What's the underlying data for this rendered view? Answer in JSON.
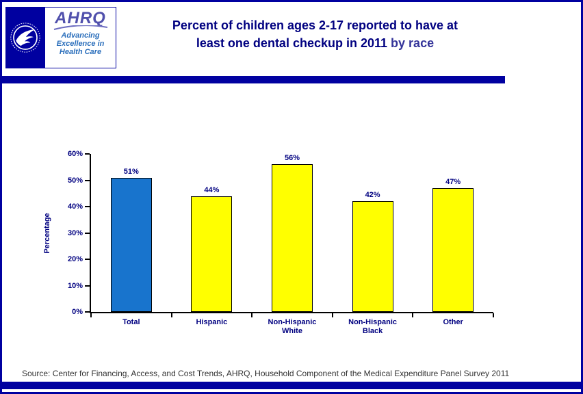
{
  "logo": {
    "org_name": "AHRQ",
    "tagline": "Advancing\nExcellence in\nHealth Care"
  },
  "title": {
    "line1": "Percent of children ages 2-17 reported to have at",
    "line2": "least one dental checkup in 2011",
    "suffix": "by race"
  },
  "chart_data": {
    "type": "bar",
    "title": "Percent of children ages 2-17 reported to have at least one dental checkup in 2011 by race",
    "categories": [
      "Total",
      "Hispanic",
      "Non-Hispanic\nWhite",
      "Non-Hispanic\nBlack",
      "Other"
    ],
    "values": [
      51,
      44,
      56,
      42,
      47
    ],
    "value_labels": [
      "51%",
      "44%",
      "56%",
      "42%",
      "47%"
    ],
    "xlabel": "",
    "ylabel": "Percentage",
    "ylim": [
      0,
      60
    ],
    "ytick_step": 10,
    "ytick_labels": [
      "0%",
      "10%",
      "20%",
      "30%",
      "40%",
      "50%",
      "60%"
    ],
    "bar_colors": [
      "#1874CD",
      "#FFFF00",
      "#FFFF00",
      "#FFFF00",
      "#FFFF00"
    ],
    "bar_border_color": "#000000",
    "grid": false,
    "legend": "none"
  },
  "footer": {
    "source": "Source: Center for Financing, Access, and Cost Trends, AHRQ, Household Component of the Medical Expenditure Panel Survey 2011"
  },
  "colors": {
    "navy": "#0000A0",
    "title_navy": "#000080",
    "subtitle_purple": "#333399",
    "total_bar_blue": "#1874CD",
    "group_bar_yellow": "#FFFF00"
  }
}
